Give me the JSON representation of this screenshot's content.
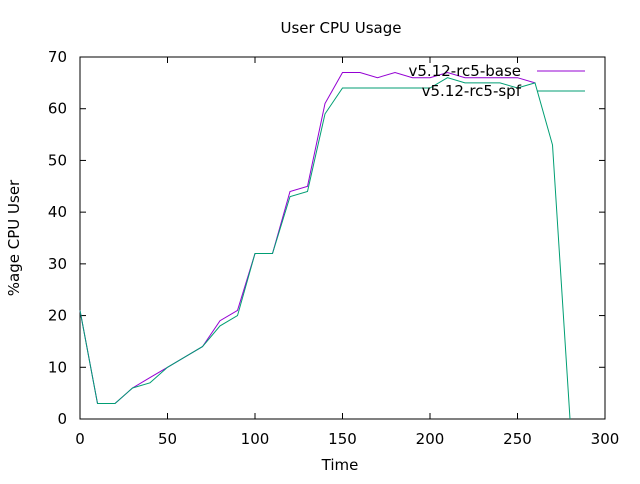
{
  "chart_data": {
    "type": "line",
    "title": "User CPU Usage",
    "xlabel": "Time",
    "ylabel": "%age CPU User",
    "xlim": [
      0,
      300
    ],
    "ylim": [
      0,
      70
    ],
    "xticks": [
      0,
      50,
      100,
      150,
      200,
      250,
      300
    ],
    "yticks": [
      0,
      10,
      20,
      30,
      40,
      50,
      60,
      70
    ],
    "grid": false,
    "legend_position": "top-right",
    "series": [
      {
        "name": "v5.12-rc5-base",
        "color": "#9400d3",
        "x": [
          0,
          10,
          20,
          30,
          40,
          50,
          60,
          70,
          80,
          90,
          100,
          110,
          120,
          130,
          140,
          150,
          160,
          170,
          180,
          190,
          200,
          210,
          220,
          230,
          240,
          250,
          260
        ],
        "y": [
          21,
          3,
          3,
          6,
          8,
          10,
          12,
          14,
          19,
          21,
          32,
          32,
          44,
          45,
          61,
          67,
          67,
          66,
          67,
          66,
          66,
          67,
          66,
          66,
          66,
          66,
          65
        ]
      },
      {
        "name": "v5.12-rc5-spf",
        "color": "#009e73",
        "x": [
          0,
          10,
          20,
          30,
          40,
          50,
          60,
          70,
          80,
          90,
          100,
          110,
          120,
          130,
          140,
          150,
          160,
          170,
          180,
          190,
          200,
          210,
          220,
          230,
          240,
          250,
          260,
          270,
          280
        ],
        "y": [
          21,
          3,
          3,
          6,
          7,
          10,
          12,
          14,
          18,
          20,
          32,
          32,
          43,
          44,
          59,
          64,
          64,
          64,
          64,
          64,
          64,
          66,
          65,
          65,
          65,
          64,
          65,
          53,
          0
        ]
      }
    ]
  }
}
